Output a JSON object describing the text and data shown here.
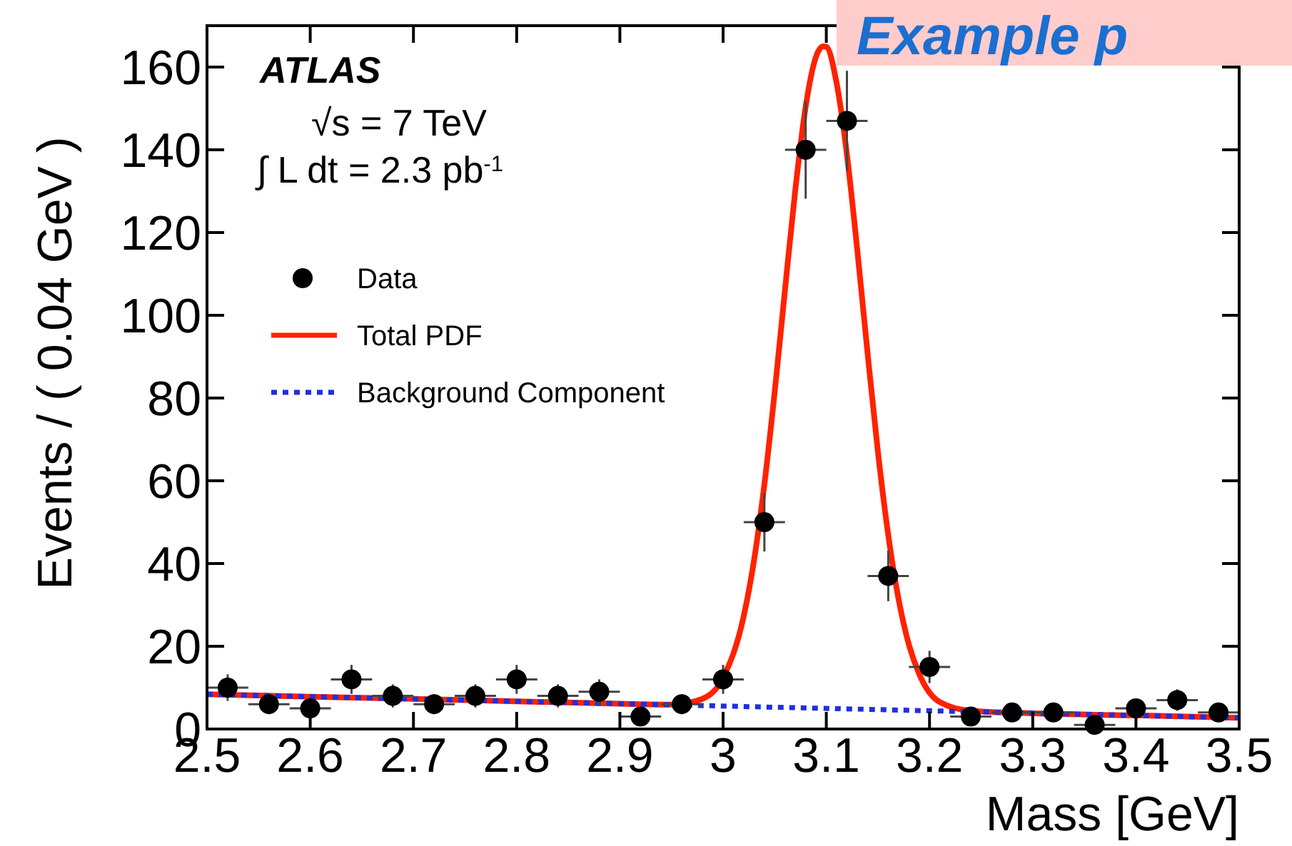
{
  "chart_data": {
    "type": "scatter",
    "xlabel": "Mass [GeV]",
    "ylabel": "Events / ( 0.04 GeV )",
    "xlim": [
      2.5,
      3.5
    ],
    "xticks": [
      2.5,
      2.6,
      2.7,
      2.8,
      2.9,
      3,
      3.1,
      3.2,
      3.3,
      3.4,
      3.5
    ],
    "ylim": [
      0,
      170
    ],
    "yticks": [
      0,
      20,
      40,
      60,
      80,
      100,
      120,
      140,
      160
    ],
    "legend": "top left",
    "grid": false,
    "annotations": [
      "ATLAS",
      "√s = 7 TeV",
      "∫ L dt = 2.3 pb$^{-1}$",
      "Example p"
    ],
    "series": [
      {
        "name": "Data",
        "marker": "circle",
        "color": "#000000",
        "x": [
          2.52,
          2.56,
          2.6,
          2.64,
          2.68,
          2.72,
          2.76,
          2.8,
          2.84,
          2.88,
          2.92,
          2.96,
          3.0,
          3.04,
          3.08,
          3.12,
          3.16,
          3.2,
          3.24,
          3.28,
          3.32,
          3.36,
          3.4,
          3.44,
          3.48
        ],
        "values": [
          10,
          6,
          5,
          12,
          8,
          6,
          8,
          12,
          8,
          9,
          3,
          6,
          12,
          50,
          140,
          147,
          37,
          15,
          3,
          4,
          4,
          1,
          5,
          7,
          4
        ],
        "errors": [
          3.2,
          2.4,
          2.2,
          3.5,
          2.8,
          2.4,
          2.8,
          3.5,
          2.8,
          3,
          1.7,
          2.4,
          3.5,
          7.1,
          11.8,
          12.1,
          6.1,
          3.9,
          1.7,
          2,
          2,
          1,
          2.2,
          2.6,
          2
        ],
        "xerrors": [
          0.02,
          0.02,
          0.02,
          0.02,
          0.02,
          0.02,
          0.02,
          0.02,
          0.02,
          0.02,
          0.02,
          0.02,
          0.02,
          0.02,
          0.02,
          0.02,
          0.02,
          0.02,
          0.02,
          0.02,
          0.02,
          0.02,
          0.02,
          0.02,
          0.02
        ]
      },
      {
        "name": "Total PDF",
        "type": "line",
        "line_style": "solid",
        "color": "#ff2200",
        "x": [
          2.5,
          2.6,
          2.7,
          2.8,
          2.9,
          2.95,
          2.98,
          3.0,
          3.02,
          3.03,
          3.04,
          3.05,
          3.06,
          3.07,
          3.08,
          3.09,
          3.097,
          3.1,
          3.11,
          3.12,
          3.13,
          3.14,
          3.15,
          3.16,
          3.17,
          3.18,
          3.19,
          3.21,
          3.24,
          3.3,
          3.4,
          3.5
        ],
        "values": [
          8.4,
          7.8,
          7.3,
          6.7,
          6.1,
          5.9,
          7.3,
          12.4,
          27.3,
          40.8,
          59.1,
          81.5,
          106.2,
          130.4,
          150.4,
          162.5,
          165,
          164.9,
          156.1,
          138.8,
          115.8,
          90.8,
          67,
          46.9,
          31.4,
          20.4,
          13.3,
          6.5,
          4.4,
          3.8,
          3.3,
          2.7
        ]
      },
      {
        "name": "Background Component",
        "type": "line",
        "line_style": "dotted",
        "color": "#1f2fe0",
        "x": [
          2.5,
          3.5
        ],
        "values": [
          8.4,
          2.7
        ]
      }
    ]
  }
}
